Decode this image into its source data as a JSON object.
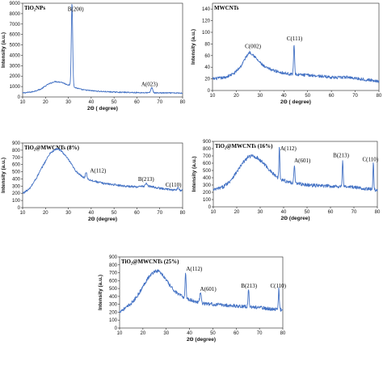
{
  "line_color": "#4472c4",
  "chart_data": [
    {
      "type": "line",
      "title": "TiO₂NPs",
      "xlabel": "2Θ ( degree)",
      "ylabel": "Intensity (a.u.)",
      "xlim": [
        10,
        80
      ],
      "ylim": [
        0,
        9000
      ],
      "xticks": [
        10,
        20,
        30,
        40,
        50,
        60,
        70,
        80
      ],
      "yticks": [
        0,
        1000,
        2000,
        3000,
        4000,
        5000,
        6000,
        7000,
        8000,
        9000
      ],
      "baseline": [
        [
          10,
          380
        ],
        [
          14,
          480
        ],
        [
          18,
          750
        ],
        [
          21,
          1200
        ],
        [
          24,
          1480
        ],
        [
          27,
          1420
        ],
        [
          29,
          1230
        ],
        [
          31,
          1100
        ],
        [
          33,
          900
        ],
        [
          36,
          700
        ],
        [
          40,
          600
        ],
        [
          45,
          520
        ],
        [
          50,
          470
        ],
        [
          55,
          440
        ],
        [
          60,
          420
        ],
        [
          65,
          400
        ],
        [
          70,
          390
        ],
        [
          75,
          380
        ],
        [
          80,
          370
        ]
      ],
      "noise": 55,
      "peaks": [
        {
          "x": 31.6,
          "y": 8000,
          "w": 0.3
        },
        {
          "x": 66.5,
          "y": 500,
          "w": 0.4
        }
      ],
      "annotations": [
        {
          "text": "B(200)",
          "x": 33.2,
          "y": 8250
        },
        {
          "text": "A(023)",
          "x": 65.5,
          "y": 1050
        }
      ]
    },
    {
      "type": "line",
      "title": "MWCNTs",
      "xlabel": "2Θ ( degree)",
      "ylabel": "Intensity (a.u.)",
      "xlim": [
        10,
        80
      ],
      "ylim": [
        0,
        150
      ],
      "xticks": [
        10,
        20,
        30,
        40,
        50,
        60,
        70,
        80
      ],
      "yticks": [
        0,
        20,
        40,
        60,
        80,
        100,
        120,
        140
      ],
      "baseline": [
        [
          10,
          20
        ],
        [
          15,
          22
        ],
        [
          19,
          29
        ],
        [
          22,
          42
        ],
        [
          24,
          57
        ],
        [
          25.5,
          66
        ],
        [
          27,
          62
        ],
        [
          29,
          52
        ],
        [
          32,
          40
        ],
        [
          36,
          34
        ],
        [
          40,
          30
        ],
        [
          43,
          28
        ],
        [
          47,
          27
        ],
        [
          52,
          26
        ],
        [
          57,
          24
        ],
        [
          62,
          22
        ],
        [
          67,
          23
        ],
        [
          72,
          20
        ],
        [
          76,
          18
        ],
        [
          80,
          16
        ]
      ],
      "noise": 2.5,
      "peaks": [
        {
          "x": 44.3,
          "y": 52,
          "w": 0.22
        }
      ],
      "annotations": [
        {
          "text": "C(002)",
          "x": 27,
          "y": 73
        },
        {
          "text": "C(111)",
          "x": 44.5,
          "y": 86
        }
      ]
    },
    {
      "type": "line",
      "title": "TiO₂@MWCNTs  (8%)",
      "xlabel": "2Θ (degree)",
      "ylabel": "Intensity (a.u.)",
      "xlim": [
        10,
        80
      ],
      "ylim": [
        0,
        900
      ],
      "xticks": [
        10,
        20,
        30,
        40,
        50,
        60,
        70,
        80
      ],
      "yticks": [
        0,
        100,
        200,
        300,
        400,
        500,
        600,
        700,
        800,
        900
      ],
      "baseline": [
        [
          10,
          200
        ],
        [
          13,
          260
        ],
        [
          16,
          410
        ],
        [
          19,
          590
        ],
        [
          22,
          760
        ],
        [
          25,
          820
        ],
        [
          27,
          790
        ],
        [
          30,
          670
        ],
        [
          33,
          520
        ],
        [
          36,
          430
        ],
        [
          40,
          380
        ],
        [
          45,
          340
        ],
        [
          50,
          320
        ],
        [
          55,
          300
        ],
        [
          60,
          290
        ],
        [
          65,
          300
        ],
        [
          70,
          270
        ],
        [
          75,
          250
        ],
        [
          80,
          240
        ]
      ],
      "noise": 14,
      "peaks": [
        {
          "x": 37.8,
          "y": 90,
          "w": 0.3
        },
        {
          "x": 64,
          "y": 40,
          "w": 0.4
        },
        {
          "x": 78,
          "y": 40,
          "w": 0.3
        }
      ],
      "annotations": [
        {
          "text": "A(112)",
          "x": 43,
          "y": 490
        },
        {
          "text": "B(213)",
          "x": 64,
          "y": 370
        },
        {
          "text": "C(110)",
          "x": 76,
          "y": 290
        }
      ]
    },
    {
      "type": "line",
      "title": "TiO₂@MWCNTs  (16%)",
      "xlabel": "2Θ (degree)",
      "ylabel": "Intensity (a.u.)",
      "xlim": [
        10,
        80
      ],
      "ylim": [
        0,
        900
      ],
      "xticks": [
        10,
        20,
        30,
        40,
        50,
        60,
        70,
        80
      ],
      "yticks": [
        0,
        100,
        200,
        300,
        400,
        500,
        600,
        700,
        800,
        900
      ],
      "baseline": [
        [
          10,
          230
        ],
        [
          14,
          270
        ],
        [
          17,
          350
        ],
        [
          20,
          480
        ],
        [
          23,
          620
        ],
        [
          25,
          690
        ],
        [
          27,
          700
        ],
        [
          29,
          670
        ],
        [
          32,
          580
        ],
        [
          35,
          470
        ],
        [
          38,
          390
        ],
        [
          42,
          340
        ],
        [
          46,
          320
        ],
        [
          50,
          300
        ],
        [
          55,
          290
        ],
        [
          60,
          285
        ],
        [
          65,
          280
        ],
        [
          70,
          270
        ],
        [
          75,
          250
        ],
        [
          80,
          230
        ]
      ],
      "noise": 24,
      "peaks": [
        {
          "x": 38.2,
          "y": 440,
          "w": 0.2
        },
        {
          "x": 44.6,
          "y": 260,
          "w": 0.22
        },
        {
          "x": 65.2,
          "y": 360,
          "w": 0.2
        },
        {
          "x": 78.3,
          "y": 360,
          "w": 0.18
        }
      ],
      "annotations": [
        {
          "text": "A(112)",
          "x": 42,
          "y": 780
        },
        {
          "text": "A(601)",
          "x": 48,
          "y": 610
        },
        {
          "text": "B(213)",
          "x": 64.5,
          "y": 685
        },
        {
          "text": "C(110)",
          "x": 77,
          "y": 630
        }
      ]
    },
    {
      "type": "line",
      "title": "TiO₂@MWCNTs  (25%)",
      "xlabel": "2Θ (degree)",
      "ylabel": "Intensity (a.u.)",
      "xlim": [
        10,
        80
      ],
      "ylim": [
        0,
        900
      ],
      "xticks": [
        10,
        20,
        30,
        40,
        50,
        60,
        70,
        80
      ],
      "yticks": [
        0,
        100,
        200,
        300,
        400,
        500,
        600,
        700,
        800,
        900
      ],
      "baseline": [
        [
          10,
          210
        ],
        [
          13,
          260
        ],
        [
          16,
          340
        ],
        [
          19,
          470
        ],
        [
          22,
          630
        ],
        [
          25,
          720
        ],
        [
          27,
          720
        ],
        [
          29,
          650
        ],
        [
          32,
          520
        ],
        [
          35,
          430
        ],
        [
          38,
          380
        ],
        [
          42,
          340
        ],
        [
          46,
          310
        ],
        [
          50,
          300
        ],
        [
          55,
          290
        ],
        [
          60,
          280
        ],
        [
          65,
          270
        ],
        [
          70,
          260
        ],
        [
          75,
          240
        ],
        [
          80,
          230
        ]
      ],
      "noise": 22,
      "peaks": [
        {
          "x": 38.3,
          "y": 330,
          "w": 0.22
        },
        {
          "x": 44.7,
          "y": 130,
          "w": 0.3
        },
        {
          "x": 65.3,
          "y": 220,
          "w": 0.22
        },
        {
          "x": 78.3,
          "y": 270,
          "w": 0.2
        }
      ],
      "annotations": [
        {
          "text": "A(112)",
          "x": 42,
          "y": 725
        },
        {
          "text": "A(601)",
          "x": 48,
          "y": 470
        },
        {
          "text": "B(213)",
          "x": 65.5,
          "y": 510
        },
        {
          "text": "C(110)",
          "x": 78,
          "y": 510
        }
      ]
    }
  ]
}
